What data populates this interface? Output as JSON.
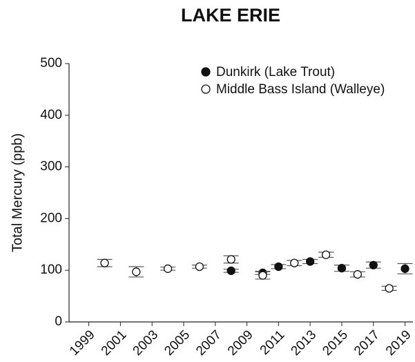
{
  "chart_data": {
    "type": "scatter",
    "title": "LAKE ERIE",
    "y_label": "Total Mercury (ppb)",
    "xlim": [
      1997.75,
      2019.5
    ],
    "xticks": [
      1999,
      2001,
      2003,
      2005,
      2007,
      2009,
      2011,
      2013,
      2015,
      2017,
      2019
    ],
    "ylim": [
      0,
      500
    ],
    "yticks": [
      0,
      100,
      200,
      300,
      400,
      500
    ],
    "grid": false,
    "legend": "upper right",
    "series": [
      {
        "name": "Dunkirk (Lake Trout)",
        "color": "#111111",
        "filled": true,
        "x": [
          2008,
          2010,
          2011,
          2013,
          2015,
          2017,
          2019
        ],
        "values": [
          99,
          95,
          107,
          117,
          104,
          110,
          103
        ],
        "errors": [
          3,
          3,
          4,
          4,
          6,
          6,
          10
        ]
      },
      {
        "name": "Middle Bass Island (Walleye)",
        "color": "#111111",
        "filled": false,
        "x": [
          2000,
          2002,
          2004,
          2006,
          2008,
          2010,
          2012,
          2014,
          2016,
          2018
        ],
        "values": [
          114,
          97,
          103,
          107,
          121,
          90,
          114,
          130,
          92,
          65
        ],
        "errors": [
          7,
          10,
          3,
          3,
          7,
          7,
          5,
          5,
          5,
          4
        ]
      }
    ]
  }
}
